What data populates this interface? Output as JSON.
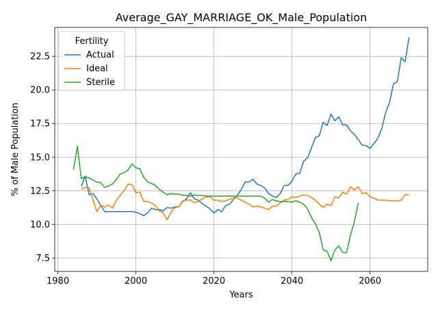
{
  "chart_data": {
    "type": "line",
    "title": "Average_GAY_MARRIAGE_OK_Male_Population",
    "xlabel": "Years",
    "ylabel": "% of Male Population",
    "xlim": [
      1979.2,
      2074.8
    ],
    "ylim": [
      6.5,
      24.65
    ],
    "xticks": [
      "1980",
      "2000",
      "2020",
      "2040",
      "2060"
    ],
    "xtick_values": [
      1980,
      2000,
      2020,
      2040,
      2060
    ],
    "yticks": [
      "7.5",
      "10.0",
      "12.5",
      "15.0",
      "17.5",
      "20.0",
      "22.5"
    ],
    "ytick_values": [
      7.5,
      10.0,
      12.5,
      15.0,
      17.5,
      20.0,
      22.5
    ],
    "grid": true,
    "legend": {
      "title": "Fertility",
      "placement": "top-left"
    },
    "series": [
      {
        "name": "Actual",
        "color": "#1f77b4",
        "x": [
          1986,
          1987,
          1988,
          1989,
          1990,
          1991,
          1992,
          1993,
          1994,
          1995,
          1996,
          1997,
          1998,
          1999,
          2000,
          2001,
          2002,
          2003,
          2004,
          2005,
          2006,
          2007,
          2008,
          2009,
          2010,
          2011,
          2012,
          2013,
          2014,
          2015,
          2016,
          2017,
          2018,
          2019,
          2020,
          2021,
          2022,
          2023,
          2024,
          2025,
          2026,
          2027,
          2028,
          2029,
          2030,
          2031,
          2032,
          2033,
          2034,
          2035,
          2036,
          2037,
          2038,
          2039,
          2040,
          2041,
          2042,
          2043,
          2044,
          2045,
          2046,
          2047,
          2048,
          2049,
          2050,
          2051,
          2052,
          2053,
          2054,
          2055,
          2056,
          2057,
          2058,
          2059,
          2060,
          2061,
          2062,
          2063,
          2064,
          2065,
          2066,
          2067,
          2068,
          2069,
          2070
        ],
        "y": [
          12.8,
          13.6,
          12.2,
          12.3,
          11.9,
          11.4,
          10.95,
          10.95,
          10.95,
          10.95,
          10.95,
          10.95,
          10.95,
          10.95,
          10.9,
          10.8,
          10.65,
          10.85,
          11.2,
          11.1,
          11.1,
          11.0,
          11.25,
          11.2,
          11.3,
          11.3,
          11.7,
          11.9,
          12.35,
          11.9,
          11.8,
          11.55,
          11.35,
          11.15,
          10.85,
          11.1,
          10.95,
          11.4,
          11.5,
          11.85,
          12.15,
          12.6,
          13.15,
          13.15,
          13.35,
          13.0,
          12.9,
          12.7,
          12.3,
          12.1,
          12.0,
          12.3,
          12.9,
          12.9,
          13.2,
          13.75,
          13.8,
          14.7,
          14.95,
          15.7,
          16.45,
          16.6,
          17.6,
          17.35,
          18.2,
          17.7,
          18.0,
          17.4,
          17.4,
          16.95,
          16.7,
          16.3,
          15.9,
          15.85,
          15.65,
          16.0,
          16.4,
          17.1,
          18.3,
          19.05,
          20.45,
          20.6,
          22.4,
          22.1,
          23.9
        ]
      },
      {
        "name": "Ideal",
        "color": "#ff7f0e",
        "x": [
          1986,
          1987,
          1988,
          1989,
          1990,
          1991,
          1992,
          1993,
          1994,
          1995,
          1996,
          1997,
          1998,
          1999,
          2000,
          2001,
          2002,
          2003,
          2004,
          2005,
          2006,
          2007,
          2008,
          2009,
          2010,
          2011,
          2012,
          2013,
          2014,
          2015,
          2016,
          2017,
          2018,
          2019,
          2020,
          2021,
          2022,
          2023,
          2024,
          2025,
          2026,
          2027,
          2028,
          2029,
          2030,
          2031,
          2032,
          2033,
          2034,
          2035,
          2036,
          2037,
          2038,
          2039,
          2040,
          2041,
          2042,
          2043,
          2044,
          2045,
          2046,
          2047,
          2048,
          2049,
          2050,
          2051,
          2052,
          2053,
          2054,
          2055,
          2056,
          2057,
          2058,
          2059,
          2060,
          2061,
          2062,
          2063,
          2064,
          2065,
          2066,
          2067,
          2068,
          2069,
          2070
        ],
        "y": [
          12.6,
          12.75,
          12.7,
          11.8,
          10.95,
          11.4,
          11.3,
          11.45,
          11.2,
          11.8,
          12.15,
          12.5,
          13.0,
          12.95,
          12.35,
          12.4,
          11.7,
          11.7,
          11.6,
          11.4,
          11.0,
          10.85,
          10.35,
          10.9,
          11.25,
          11.3,
          11.75,
          11.8,
          11.8,
          11.6,
          11.7,
          11.9,
          12.05,
          12.05,
          11.8,
          11.8,
          11.7,
          11.75,
          11.85,
          12.0,
          11.95,
          11.8,
          11.65,
          11.5,
          11.3,
          11.35,
          11.3,
          11.2,
          11.1,
          11.35,
          11.35,
          11.6,
          11.8,
          11.85,
          12.05,
          12.0,
          12.1,
          12.2,
          12.15,
          12.0,
          11.8,
          11.5,
          11.25,
          11.5,
          11.4,
          12.05,
          11.95,
          12.4,
          12.25,
          12.8,
          12.55,
          12.8,
          12.3,
          12.35,
          12.05,
          11.95,
          11.8,
          11.8,
          11.8,
          11.75,
          11.75,
          11.75,
          11.8,
          12.2,
          12.2
        ]
      },
      {
        "name": "Sterile",
        "color": "#2ca02c",
        "x": [
          1984,
          1985,
          1986,
          1987,
          1988,
          1989,
          1990,
          1991,
          1992,
          1993,
          1994,
          1995,
          1996,
          1997,
          1998,
          1999,
          2000,
          2001,
          2002,
          2003,
          2004,
          2005,
          2006,
          2007,
          2008,
          2009,
          2010,
          2011,
          2012,
          2013,
          2014,
          2015,
          2016,
          2017,
          2018,
          2019,
          2020,
          2021,
          2022,
          2023,
          2024,
          2025,
          2026,
          2027,
          2028,
          2029,
          2030,
          2031,
          2032,
          2033,
          2034,
          2035,
          2036,
          2037,
          2038,
          2039,
          2040,
          2041,
          2042,
          2043,
          2044,
          2045,
          2046,
          2047,
          2048,
          2049,
          2050,
          2051,
          2052,
          2053,
          2054,
          2055,
          2056,
          2057
        ],
        "y": [
          14.05,
          15.8,
          13.4,
          13.55,
          13.45,
          13.3,
          13.15,
          13.1,
          12.75,
          12.85,
          13.0,
          13.35,
          13.75,
          13.85,
          14.05,
          14.5,
          14.2,
          14.15,
          13.5,
          13.15,
          13.05,
          12.9,
          12.6,
          12.4,
          12.2,
          12.3,
          12.25,
          12.25,
          12.15,
          12.15,
          12.1,
          12.2,
          12.15,
          12.15,
          12.1,
          12.1,
          12.1,
          12.1,
          12.1,
          12.1,
          12.1,
          12.1,
          12.1,
          12.1,
          12.1,
          12.1,
          12.1,
          12.1,
          12.1,
          11.95,
          11.65,
          11.85,
          11.75,
          11.7,
          11.7,
          11.7,
          11.65,
          11.75,
          11.65,
          11.5,
          11.15,
          10.5,
          10.05,
          9.4,
          8.1,
          8.0,
          7.3,
          8.1,
          8.4,
          7.9,
          7.9,
          9.2,
          10.2,
          11.6
        ]
      }
    ]
  }
}
